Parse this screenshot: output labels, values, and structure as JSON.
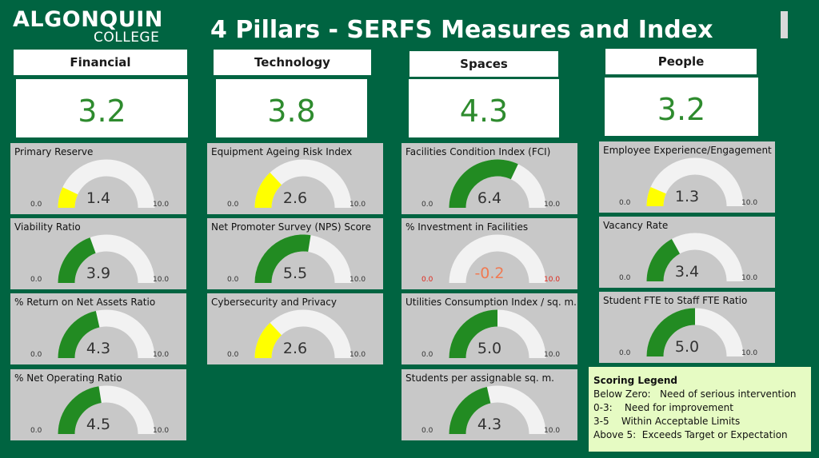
{
  "header": {
    "logo_top": "ALGONQUIN",
    "logo_bottom": "COLLEGE",
    "title": "4 Pillars - SERFS Measures and Index"
  },
  "pillars": [
    {
      "name": "Financial",
      "score": "3.2"
    },
    {
      "name": "Technology",
      "score": "3.8"
    },
    {
      "name": "Spaces",
      "score": "4.3"
    },
    {
      "name": "People",
      "score": "3.2"
    }
  ],
  "cards": [
    {
      "title": "Primary Reserve",
      "min": "0.0",
      "max": "10.0",
      "value": "1.4"
    },
    {
      "title": "Viability Ratio",
      "min": "0.0",
      "max": "10.0",
      "value": "3.9"
    },
    {
      "title": "% Return on Net Assets Ratio",
      "min": "0.0",
      "max": "10.0",
      "value": "4.3"
    },
    {
      "title": "% Net Operating Ratio",
      "min": "0.0",
      "max": "10.0",
      "value": "4.5"
    },
    {
      "title": "Equipment Ageing Risk Index",
      "min": "0.0",
      "max": "10.0",
      "value": "2.6"
    },
    {
      "title": "Net Promoter Survey (NPS) Score",
      "min": "0.0",
      "max": "10.0",
      "value": "5.5"
    },
    {
      "title": "Cybersecurity and Privacy",
      "min": "0.0",
      "max": "10.0",
      "value": "2.6"
    },
    {
      "title": "Facilities Condition Index (FCI)",
      "min": "0.0",
      "max": "10.0",
      "value": "6.4"
    },
    {
      "title": "% Investment in Facilities",
      "min": "0.0",
      "max": "10.0",
      "value": "-0.2"
    },
    {
      "title": "Utilities Consumption Index / sq. m.",
      "min": "0.0",
      "max": "10.0",
      "value": "5.0"
    },
    {
      "title": "Students per assignable sq. m.",
      "min": "0.0",
      "max": "10.0",
      "value": "4.3"
    },
    {
      "title": "Employee Experience/Engagement",
      "min": "0.0",
      "max": "10.0",
      "value": "1.3"
    },
    {
      "title": "Vacancy Rate",
      "min": "0.0",
      "max": "10.0",
      "value": "3.4"
    },
    {
      "title": "Student FTE to Staff FTE Ratio",
      "min": "0.0",
      "max": "10.0",
      "value": "5.0"
    }
  ],
  "gauge_colors": {
    "low": "#ffff00",
    "ok": "#228b22",
    "track": "#f2f2f2"
  },
  "legend": {
    "title": "Scoring Legend",
    "rows": [
      "Below Zero:   Need of serious intervention",
      "0-3:    Need for improvement",
      "3-5    Within Acceptable Limits",
      "Above 5:  Exceeds Target or Expectation"
    ]
  }
}
